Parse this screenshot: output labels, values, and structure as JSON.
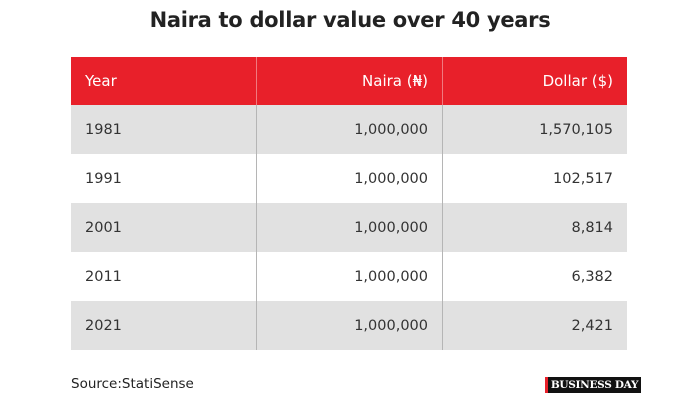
{
  "header": {
    "title": "Naira to dollar value over 40 years"
  },
  "table": {
    "columns": [
      "Year",
      "Naira (₦)",
      "Dollar ($)"
    ],
    "rows": [
      [
        "1981",
        "1,000,000",
        "1,570,105"
      ],
      [
        "1991",
        "1,000,000",
        "102,517"
      ],
      [
        "2001",
        "1,000,000",
        "8,814"
      ],
      [
        "2011",
        "1,000,000",
        "6,382"
      ],
      [
        "2021",
        "1,000,000",
        "2,421"
      ]
    ]
  },
  "footer": {
    "source": "Source:StatiSense",
    "logo": "BUSINESS DAY"
  }
}
